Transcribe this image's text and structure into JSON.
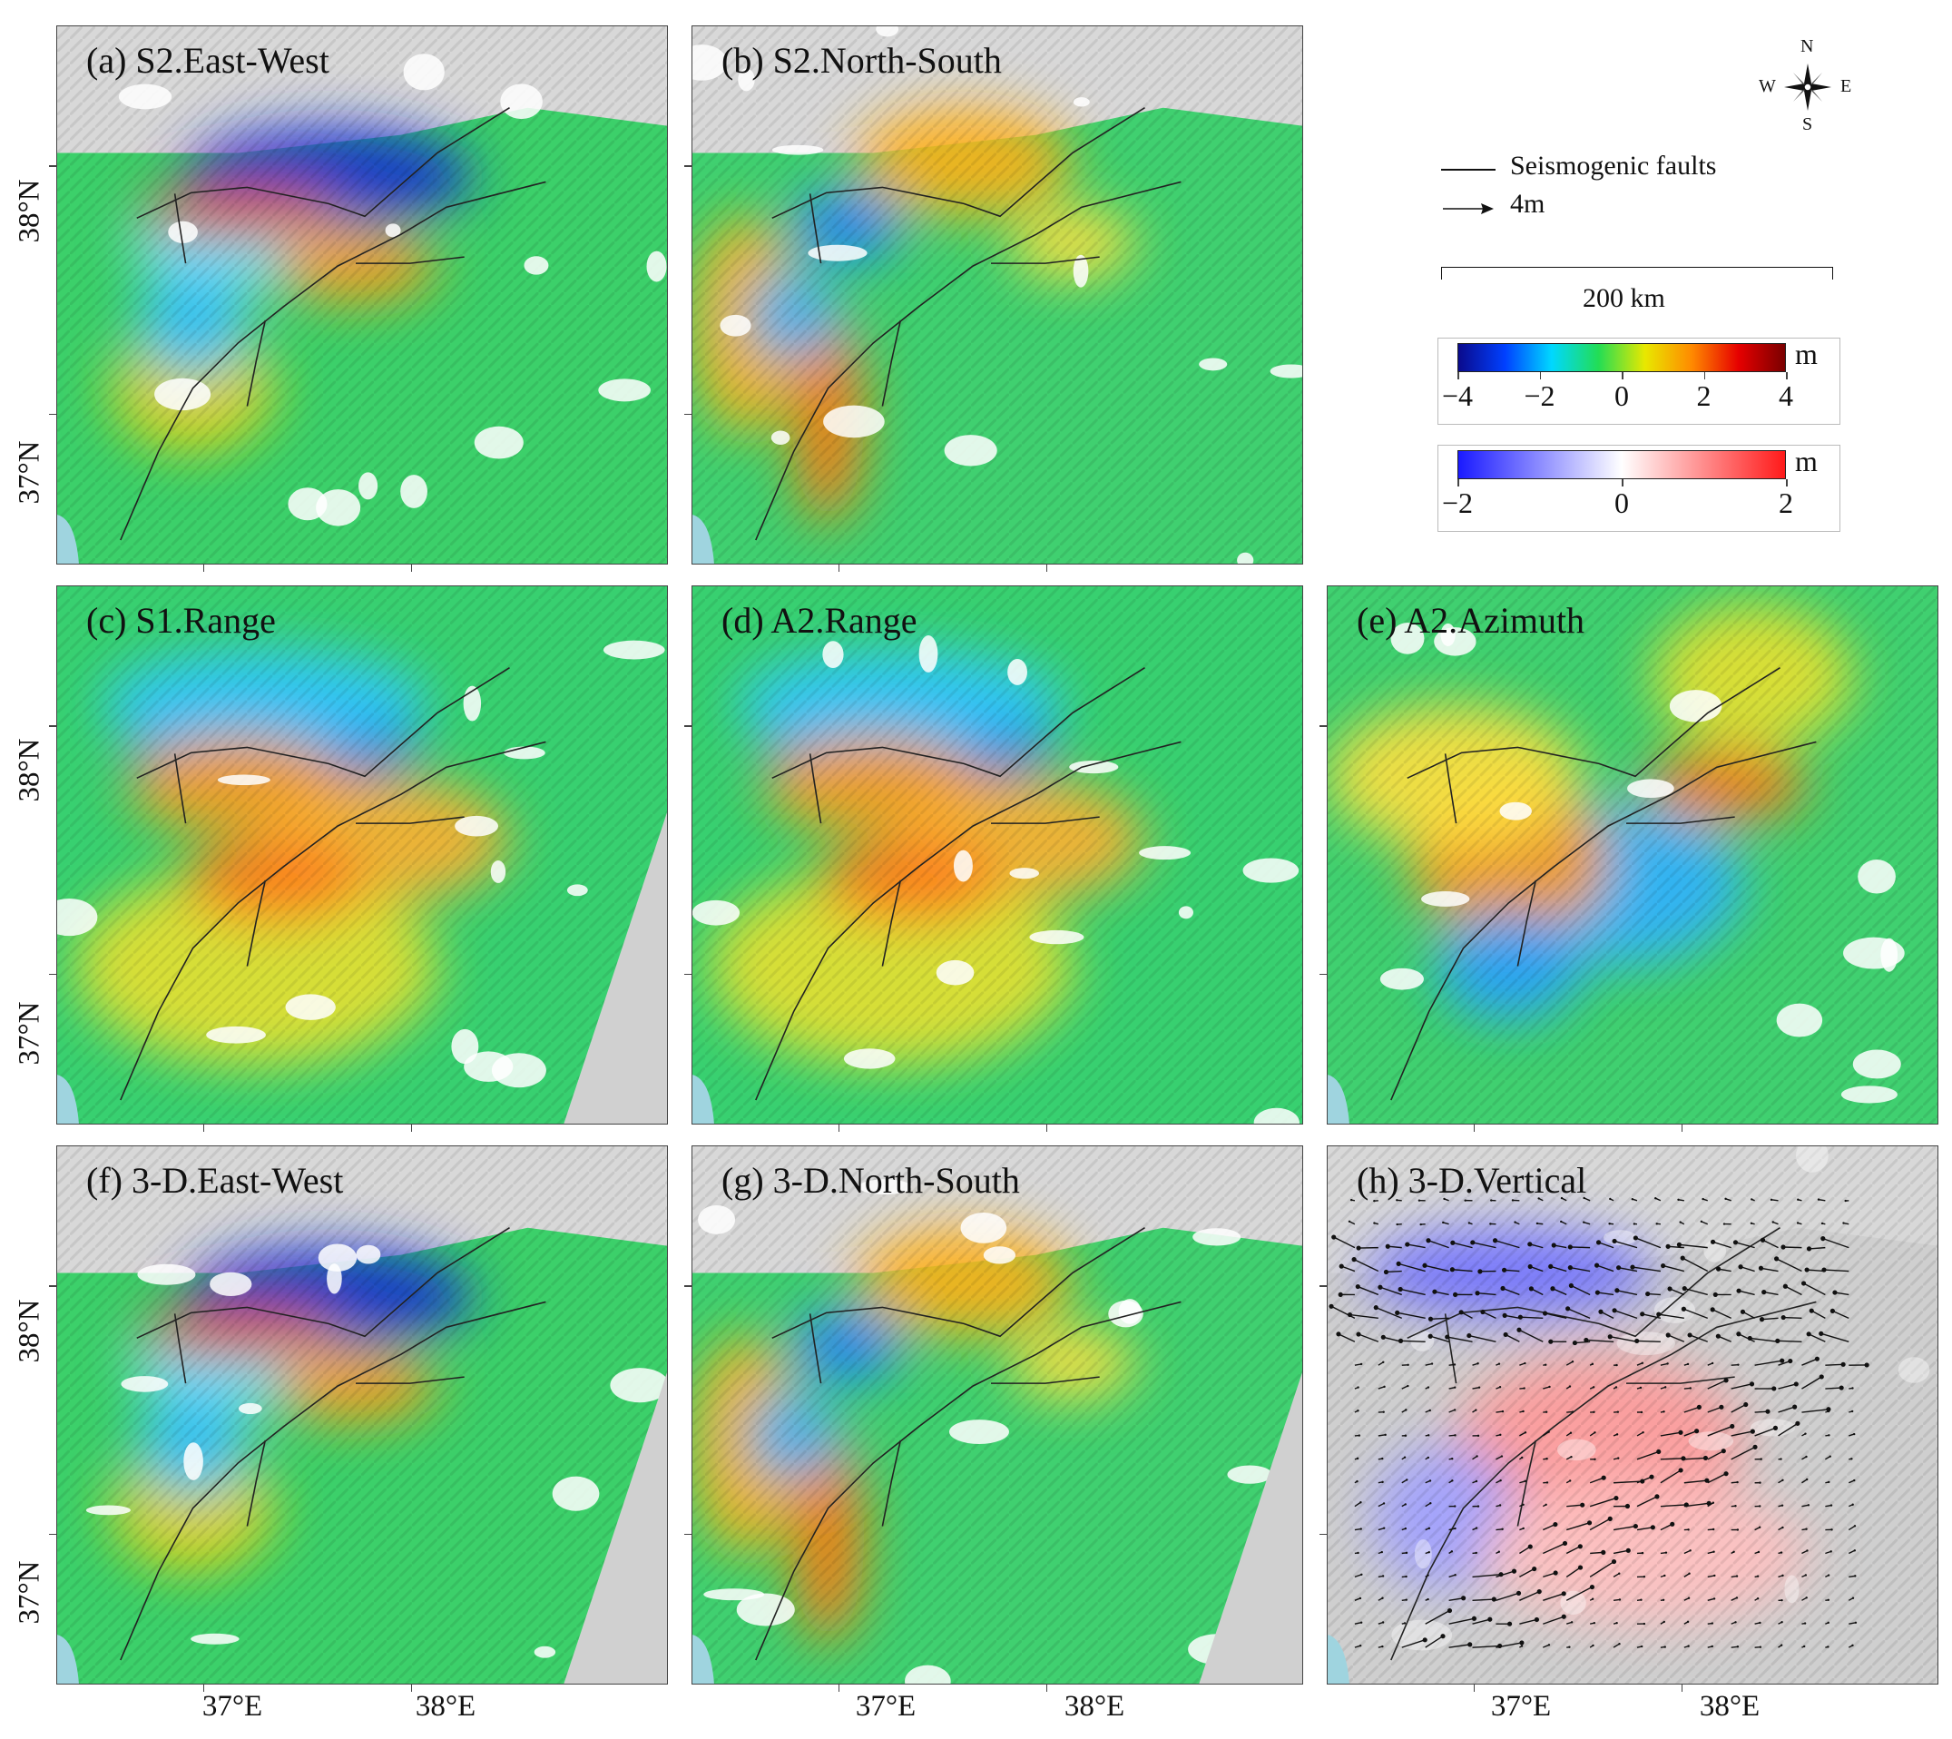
{
  "panels": [
    {
      "id": "a",
      "title": "(a) S2.East-West",
      "scheme": "ew"
    },
    {
      "id": "b",
      "title": "(b) S2.North-South",
      "scheme": "ns"
    },
    {
      "id": "c",
      "title": "(c) S1.Range",
      "scheme": "range"
    },
    {
      "id": "d",
      "title": "(d) A2.Range",
      "scheme": "range"
    },
    {
      "id": "e",
      "title": "(e) A2.Azimuth",
      "scheme": "azi"
    },
    {
      "id": "f",
      "title": "(f) 3-D.East-West",
      "scheme": "ew"
    },
    {
      "id": "g",
      "title": "(g) 3-D.North-South",
      "scheme": "ns"
    },
    {
      "id": "h",
      "title": "(h) 3-D.Vertical",
      "scheme": "vert"
    }
  ],
  "axes": {
    "lat_labels": [
      "38°N",
      "37°N"
    ],
    "lon_labels": [
      "37°E",
      "38°E"
    ]
  },
  "compass": {
    "n": "N",
    "s": "S",
    "e": "E",
    "w": "W"
  },
  "legend": {
    "faults_label": "Seismogenic faults",
    "arrow_label": "4m",
    "scale_label": "200 km"
  },
  "colorbar_main": {
    "unit": "m",
    "ticks": [
      "−4",
      "−2",
      "0",
      "2",
      "4"
    ],
    "colors": [
      "#0a0a8c",
      "#0040ff",
      "#00d8ff",
      "#22dd55",
      "#e8e800",
      "#ff8a00",
      "#e60000",
      "#7a0000"
    ]
  },
  "colorbar_vert": {
    "unit": "m",
    "ticks": [
      "−2",
      "0",
      "2"
    ],
    "colors": [
      "#1a1aff",
      "#ffffff",
      "#ff1a1a"
    ]
  }
}
